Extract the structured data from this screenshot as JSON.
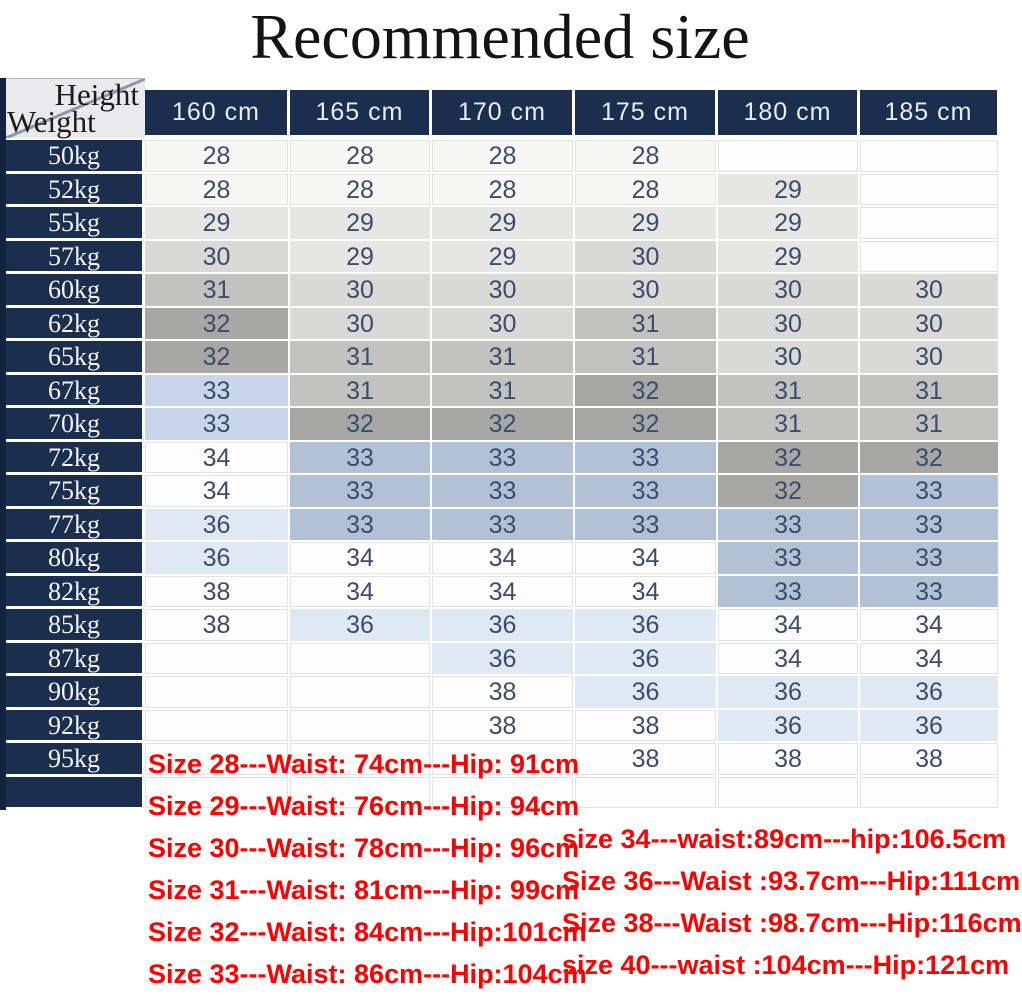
{
  "title": "Recommended size",
  "corner": {
    "top_label": "Height",
    "bottom_label": "Weight"
  },
  "chart_data": {
    "type": "table",
    "title": "Recommended size",
    "columns": [
      "160 cm",
      "165 cm",
      "170 cm",
      "175 cm",
      "180 cm",
      "185 cm"
    ],
    "rows": [
      {
        "weight": "50kg",
        "cells": [
          "28",
          "28",
          "28",
          "28",
          "",
          ""
        ]
      },
      {
        "weight": "52kg",
        "cells": [
          "28",
          "28",
          "28",
          "28",
          "29",
          ""
        ]
      },
      {
        "weight": "55kg",
        "cells": [
          "29",
          "29",
          "29",
          "29",
          "29",
          ""
        ]
      },
      {
        "weight": "57kg",
        "cells": [
          "30",
          "29",
          "29",
          "30",
          "29",
          ""
        ]
      },
      {
        "weight": "60kg",
        "cells": [
          "31",
          "30",
          "30",
          "30",
          "30",
          "30"
        ]
      },
      {
        "weight": "62kg",
        "cells": [
          "32",
          "30",
          "30",
          "31",
          "30",
          "30"
        ]
      },
      {
        "weight": "65kg",
        "cells": [
          "32",
          "31",
          "31",
          "31",
          "30",
          "30"
        ]
      },
      {
        "weight": "67kg",
        "cells": [
          "33",
          "31",
          "31",
          "32",
          "31",
          "31"
        ]
      },
      {
        "weight": "70kg",
        "cells": [
          "33",
          "32",
          "32",
          "32",
          "31",
          "31"
        ]
      },
      {
        "weight": "72kg",
        "cells": [
          "34",
          "33",
          "33",
          "33",
          "32",
          "32"
        ]
      },
      {
        "weight": "75kg",
        "cells": [
          "34",
          "33",
          "33",
          "33",
          "32",
          "33"
        ]
      },
      {
        "weight": "77kg",
        "cells": [
          "36",
          "33",
          "33",
          "33",
          "33",
          "33"
        ]
      },
      {
        "weight": "80kg",
        "cells": [
          "36",
          "34",
          "34",
          "34",
          "33",
          "33"
        ]
      },
      {
        "weight": "82kg",
        "cells": [
          "38",
          "34",
          "34",
          "34",
          "33",
          "33"
        ]
      },
      {
        "weight": "85kg",
        "cells": [
          "38",
          "36",
          "36",
          "36",
          "34",
          "34"
        ]
      },
      {
        "weight": "87kg",
        "cells": [
          "",
          "",
          "36",
          "36",
          "34",
          "34"
        ]
      },
      {
        "weight": "90kg",
        "cells": [
          "",
          "",
          "38",
          "36",
          "36",
          "36"
        ]
      },
      {
        "weight": "92kg",
        "cells": [
          "",
          "",
          "38",
          "38",
          "36",
          "36"
        ]
      },
      {
        "weight": "95kg",
        "cells": [
          "",
          "",
          "",
          "38",
          "38",
          "38"
        ]
      },
      {
        "weight": "",
        "cells": [
          "",
          "",
          "",
          "",
          "",
          ""
        ]
      }
    ]
  },
  "size_notes_left": [
    "Size 28---Waist: 74cm---Hip: 91cm",
    "Size 29---Waist: 76cm---Hip: 94cm",
    "Size 30---Waist: 78cm---Hip: 96cm",
    "Size 31---Waist: 81cm---Hip: 99cm",
    "Size 32---Waist: 84cm---Hip:101cm",
    "Size 33---Waist: 86cm---Hip:104cm"
  ],
  "size_notes_right": [
    "size 34---waist:89cm---hip:106.5cm",
    "Size 36---Waist :93.7cm---Hip:111cm",
    "Size 38---Waist :98.7cm---Hip:116cm",
    "size 40---waist :104cm---Hip:121cm"
  ],
  "colors": {
    "header_navy": "#1c2e4e",
    "cell_text": "#3c4c6a",
    "note_red": "#fe0000",
    "corner_bg": "#eaeaec",
    "value_shades": {
      "28": "#f7f7f5",
      "29": "#e6e6e4",
      "30": "#d9d9d7",
      "31": "#c2c2c0",
      "32": "#a7a7a5",
      "33": "#b2c1d6",
      "34": "#fdfdfd",
      "36": "#dfe8f3",
      "38": "#fdfdfd",
      "": "#fdfdfd"
    },
    "light_blue_override": "#c9d6e9",
    "light_blue_override_cells": [
      [
        7,
        0
      ],
      [
        8,
        0
      ]
    ]
  }
}
